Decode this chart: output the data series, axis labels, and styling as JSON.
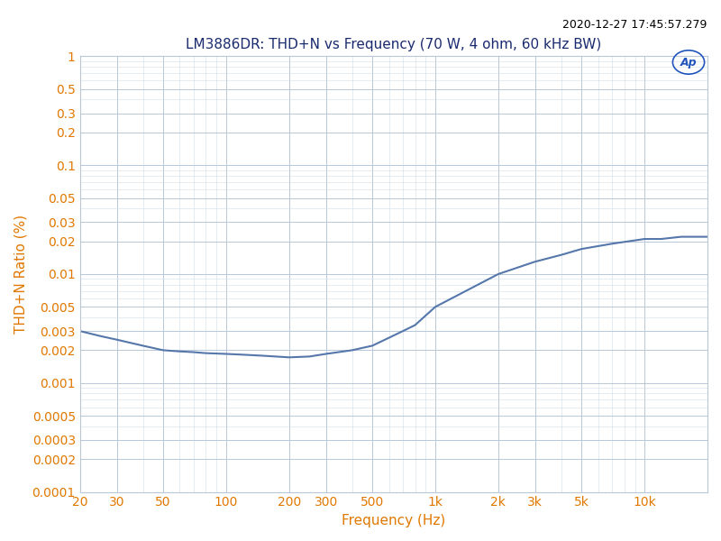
{
  "title": "LM3886DR: THD+N vs Frequency (70 W, 4 ohm, 60 kHz BW)",
  "timestamp": "2020-12-27 17:45:57.279",
  "xlabel": "Frequency (Hz)",
  "ylabel": "THD+N Ratio (%)",
  "xmin": 20,
  "xmax": 20000,
  "ymin": 0.0001,
  "ymax": 1,
  "line_color": "#5577aa",
  "line_width": 1.5,
  "bg_color": "#ffffff",
  "grid_major_color": "#b8c8d8",
  "grid_minor_color": "#d0dde8",
  "title_color": "#1a2a6e",
  "axis_tick_color": "#e07800",
  "axis_label_color": "#e07800",
  "timestamp_color": "#000000",
  "ap_logo_color": "#2255bb",
  "freq_data": [
    20,
    25,
    30,
    40,
    50,
    60,
    70,
    80,
    100,
    120,
    150,
    200,
    250,
    300,
    400,
    500,
    600,
    700,
    800,
    1000,
    1200,
    1500,
    2000,
    3000,
    4000,
    5000,
    7000,
    10000,
    12000,
    15000,
    20000
  ],
  "thd_data": [
    0.003,
    0.0027,
    0.0025,
    0.0022,
    0.002,
    0.00195,
    0.00192,
    0.00188,
    0.00185,
    0.00182,
    0.00178,
    0.00172,
    0.00175,
    0.00185,
    0.002,
    0.0022,
    0.0026,
    0.003,
    0.0034,
    0.005,
    0.006,
    0.0075,
    0.01,
    0.013,
    0.015,
    0.017,
    0.019,
    0.021,
    0.021,
    0.022,
    0.022
  ],
  "xticks": [
    20,
    30,
    50,
    100,
    200,
    300,
    500,
    1000,
    2000,
    3000,
    5000,
    10000
  ],
  "xtick_labels": [
    "20",
    "30",
    "50",
    "100",
    "200",
    "300",
    "500",
    "1k",
    "2k",
    "3k",
    "5k",
    "10k"
  ],
  "yticks": [
    1,
    0.5,
    0.3,
    0.2,
    0.1,
    0.05,
    0.03,
    0.02,
    0.01,
    0.005,
    0.003,
    0.002,
    0.001,
    0.0005,
    0.0003,
    0.0002,
    0.0001
  ],
  "ytick_labels": [
    "1",
    "0.5",
    "0.3",
    "0.2",
    "0.1",
    "0.05",
    "0.03",
    "0.02",
    "0.01",
    "0.005",
    "0.003",
    "0.002",
    "0.001",
    "0.0005",
    "0.0003",
    "0.0002",
    "0.0001"
  ]
}
